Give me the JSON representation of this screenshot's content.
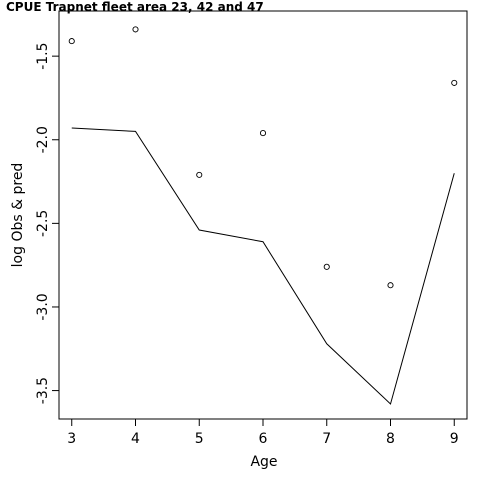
{
  "chart_data": {
    "type": "line",
    "title": "CPUE Trapnet fleet area 23, 42 and 47",
    "xlabel": "Age",
    "ylabel": "log Obs & pred",
    "xlim": [
      2.8,
      9.2
    ],
    "ylim": [
      -3.67,
      -1.23
    ],
    "x_ticks": [
      3,
      4,
      5,
      6,
      7,
      8,
      9
    ],
    "x_tick_labels": [
      "3",
      "4",
      "5",
      "6",
      "7",
      "8",
      "9"
    ],
    "y_ticks": [
      -1.5,
      -2.0,
      -2.5,
      -3.0,
      -3.5
    ],
    "y_tick_labels": [
      "-1.5",
      "-2.0",
      "-2.5",
      "-3.0",
      "-3.5"
    ],
    "grid": false,
    "legend": "none",
    "series": [
      {
        "kind": "points",
        "marker": "open-circle",
        "x": [
          3,
          4,
          5,
          6,
          7,
          8,
          9
        ],
        "y": [
          -1.41,
          -1.34,
          -2.21,
          -1.96,
          -2.76,
          -2.87,
          -1.66
        ]
      },
      {
        "kind": "line",
        "x": [
          3,
          4,
          5,
          6,
          7,
          8,
          9
        ],
        "y": [
          -1.93,
          -1.95,
          -2.54,
          -2.61,
          -3.22,
          -3.58,
          -2.2
        ]
      }
    ]
  }
}
